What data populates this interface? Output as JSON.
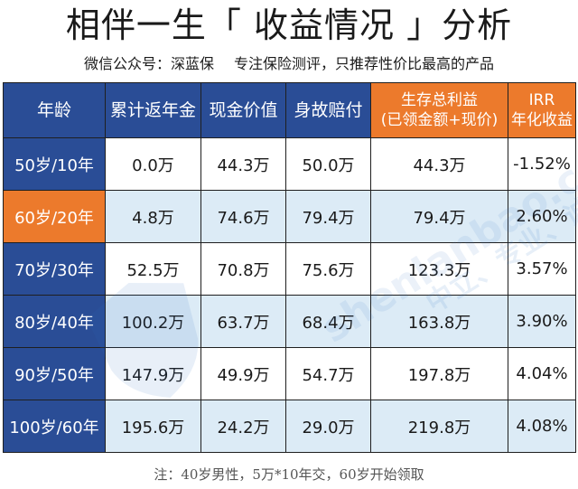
{
  "title": "相伴一生「 收益情况 」分析",
  "subtitle": {
    "account": "微信公众号：深蓝保",
    "slogan": "专注保险测评，只推荐性价比最高的产品"
  },
  "table": {
    "headers": {
      "age": "年龄",
      "annuity": "累计返年金",
      "cash_value": "现金价值",
      "death_benefit": "身故赔付",
      "total_benefit_line1": "生存总利益",
      "total_benefit_line2": "(已领金额+现价)",
      "irr_line1": "IRR",
      "irr_line2": "年化收益"
    },
    "rows": [
      {
        "age": "50岁/10年",
        "annuity": "0.0万",
        "cash_value": "44.3万",
        "death_benefit": "50.0万",
        "total_benefit": "44.3万",
        "irr": "-1.52%"
      },
      {
        "age": "60岁/20年",
        "annuity": "4.8万",
        "cash_value": "74.6万",
        "death_benefit": "79.4万",
        "total_benefit": "79.4万",
        "irr": "2.60%"
      },
      {
        "age": "70岁/30年",
        "annuity": "52.5万",
        "cash_value": "70.8万",
        "death_benefit": "75.6万",
        "total_benefit": "123.3万",
        "irr": "3.57%"
      },
      {
        "age": "80岁/40年",
        "annuity": "100.2万",
        "cash_value": "63.7万",
        "death_benefit": "68.4万",
        "total_benefit": "163.8万",
        "irr": "3.90%"
      },
      {
        "age": "90岁/50年",
        "annuity": "147.9万",
        "cash_value": "49.9万",
        "death_benefit": "54.7万",
        "total_benefit": "197.8万",
        "irr": "4.04%"
      },
      {
        "age": "100岁/60年",
        "annuity": "195.6万",
        "cash_value": "24.2万",
        "death_benefit": "29.0万",
        "total_benefit": "219.8万",
        "irr": "4.08%"
      }
    ]
  },
  "watermark": {
    "domain": "shenlanbao.com",
    "tagline": "中立、专业、诚信"
  },
  "note": "注：40岁男性，5万*10年交，60岁开始领取",
  "colors": {
    "header_blue": "#2a4d96",
    "highlight_orange": "#ec7a2c",
    "alt_row": "#dcebf6"
  }
}
